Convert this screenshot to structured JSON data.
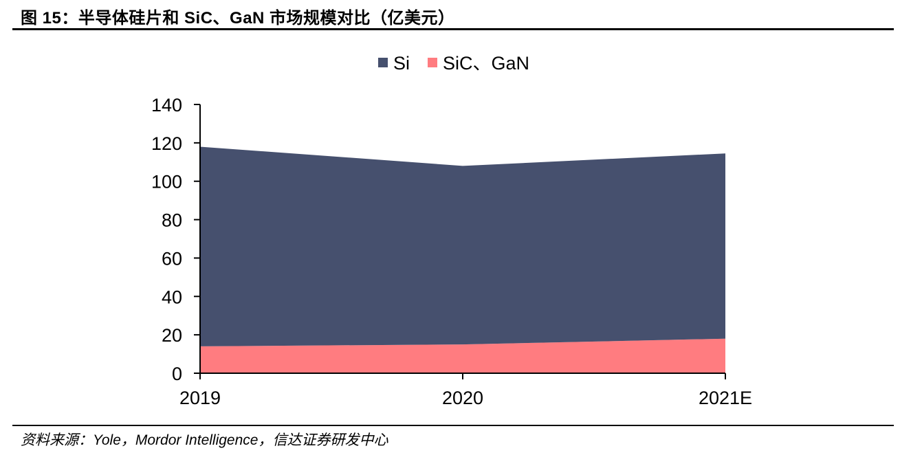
{
  "figure": {
    "title": "图 15：半导体硅片和 SiC、GaN 市场规模对比（亿美元）",
    "source": "资料来源：Yole，Mordor Intelligence，信达证券研发中心"
  },
  "chart_data": {
    "type": "area",
    "stacked": true,
    "categories": [
      "2019",
      "2020",
      "2021E"
    ],
    "series": [
      {
        "name": "SiC、GaN",
        "values": [
          14,
          15,
          18
        ],
        "color": "#FF7C80"
      },
      {
        "name": "Si",
        "values": [
          104,
          93,
          96.5
        ],
        "color": "#46506E"
      }
    ],
    "stack_totals": [
      118,
      108,
      114.5
    ],
    "ylim": [
      0,
      140
    ],
    "yticks": [
      0,
      20,
      40,
      60,
      80,
      100,
      120,
      140
    ],
    "grid": false,
    "legend_position": "top-center",
    "xlabel": "",
    "ylabel": ""
  }
}
